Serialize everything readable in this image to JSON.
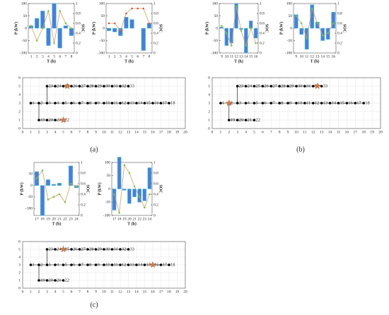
{
  "panels": [
    "(a)",
    "(b)",
    "(c)"
  ],
  "chart_data": [
    {
      "type": "bar",
      "xlabel": "T (h)",
      "ylabel": "P (kW)",
      "y2label": "SOC",
      "categories": [
        1,
        2,
        3,
        4,
        5,
        6,
        7,
        8
      ],
      "series": [
        {
          "values": [
            10,
            40,
            70,
            -70,
            100,
            -80,
            10,
            -30
          ],
          "color": "#4a7fd6"
        },
        {
          "kind": "line",
          "axis": "y2",
          "values": [
            0.55,
            0.25,
            0.5,
            0.85,
            0.2,
            0.85,
            0.6,
            0.5
          ],
          "color": "#c9a063",
          "marker_color": "#7cc242"
        }
      ],
      "ylim": [
        -100,
        100
      ],
      "yticks": [
        -100,
        -50,
        0,
        50,
        100
      ],
      "y2lim": [
        0,
        1
      ],
      "y2ticks": [
        0,
        0.2,
        0.4,
        0.6,
        0.8,
        1
      ]
    },
    {
      "type": "bar",
      "xlabel": "T (h)",
      "ylabel": "P (kW)",
      "y2label": "SOC",
      "categories": [
        1,
        2,
        3,
        4,
        5,
        6,
        7,
        8
      ],
      "series": [
        {
          "values": [
            -10,
            -15,
            -30,
            45,
            35,
            0,
            -90,
            20
          ],
          "color": "#4a7fd6"
        },
        {
          "kind": "line",
          "axis": "y2",
          "values": [
            0.6,
            0.6,
            0.45,
            0.8,
            0.9,
            0.9,
            0.9,
            0.6
          ],
          "color": "#c9a063",
          "marker_color": "#e0533a"
        }
      ],
      "ylim": [
        -100,
        100
      ],
      "yticks": [
        -100,
        -50,
        0,
        50,
        100
      ],
      "y2lim": [
        0,
        1
      ],
      "y2ticks": [
        0,
        0.2,
        0.4,
        0.6,
        0.8,
        1
      ]
    },
    {
      "type": "network",
      "xlim": [
        0,
        20
      ],
      "xticks": [
        0,
        1,
        2,
        3,
        4,
        5,
        6,
        7,
        8,
        9,
        10,
        11,
        12,
        13,
        14,
        15,
        16,
        17,
        18,
        19,
        20
      ],
      "ylim": [
        0,
        6
      ],
      "yticks": [
        0,
        1,
        2,
        3,
        4,
        5,
        6
      ],
      "grid": true,
      "series": [
        {
          "x": [
            1,
            2,
            3,
            4,
            5,
            6,
            7,
            8,
            9,
            10,
            11,
            12,
            13,
            14,
            15,
            16,
            17,
            18
          ],
          "values": [
            3,
            3,
            3,
            3,
            3,
            3,
            3,
            3,
            3,
            3,
            3,
            3,
            3,
            3,
            3,
            3,
            3,
            3
          ],
          "labels": [
            1,
            2,
            3,
            4,
            5,
            6,
            7,
            8,
            9,
            10,
            11,
            12,
            13,
            14,
            15,
            16,
            17,
            18
          ],
          "color": "#000000"
        },
        {
          "x": [
            2,
            3,
            4,
            5
          ],
          "values": [
            1,
            1,
            1,
            1
          ],
          "labels": [
            19,
            20,
            21,
            22
          ],
          "color": "#000000"
        },
        {
          "x": [
            3,
            4,
            5,
            6,
            7,
            8,
            9,
            10,
            11,
            12,
            13
          ],
          "values": [
            5,
            5,
            5,
            5,
            5,
            5,
            5,
            5,
            5,
            5,
            5
          ],
          "labels": [
            23,
            24,
            25,
            26,
            27,
            28,
            29,
            30,
            31,
            32,
            33
          ],
          "color": "#000000"
        },
        {
          "marker": "star",
          "x": [
            5,
            5.5
          ],
          "values": [
            1,
            5
          ],
          "color": "#e07a3a"
        }
      ]
    },
    {
      "type": "bar",
      "xlabel": "T (h)",
      "ylabel": "P (kW)",
      "y2label": "SOC",
      "categories": [
        9,
        10,
        11,
        12,
        13,
        14,
        15,
        16
      ],
      "series": [
        {
          "values": [
            5,
            -70,
            -60,
            100,
            -5,
            -100,
            30,
            -40
          ],
          "color": "#4a7fd6"
        },
        {
          "kind": "line",
          "axis": "y2",
          "values": [
            0.55,
            0.4,
            0.15,
            0.95,
            0.45,
            0.15,
            0.5,
            0.2
          ],
          "color": "#c9a063",
          "marker_color": "#7cc242"
        }
      ],
      "ylim": [
        -100,
        100
      ],
      "yticks": [
        -100,
        -50,
        0,
        50,
        100
      ],
      "y2lim": [
        0,
        1
      ],
      "y2ticks": [
        0,
        0.2,
        0.4,
        0.6,
        0.8,
        1
      ]
    },
    {
      "type": "bar",
      "xlabel": "T (h)",
      "ylabel": "P (kW)",
      "y2label": "SOC",
      "categories": [
        9,
        10,
        11,
        12,
        13,
        14,
        15,
        16
      ],
      "series": [
        {
          "values": [
            55,
            -25,
            -85,
            95,
            25,
            -50,
            -45,
            65
          ],
          "color": "#4a7fd6"
        },
        {
          "kind": "line",
          "axis": "y2",
          "values": [
            0.75,
            0.6,
            0.3,
            0.9,
            0.6,
            0.35,
            0.4,
            0.6
          ],
          "color": "#c9a063",
          "marker_color": "#7cc242"
        }
      ],
      "ylim": [
        -100,
        100
      ],
      "yticks": [
        -100,
        -50,
        0,
        50,
        100
      ],
      "y2lim": [
        0,
        1
      ],
      "y2ticks": [
        0,
        0.2,
        0.4,
        0.6,
        0.8,
        1
      ]
    },
    {
      "type": "network",
      "xlim": [
        0,
        20
      ],
      "xticks": [
        0,
        1,
        2,
        3,
        4,
        5,
        6,
        7,
        8,
        9,
        10,
        11,
        12,
        13,
        14,
        15,
        16,
        17,
        18,
        19,
        20
      ],
      "ylim": [
        0,
        6
      ],
      "yticks": [
        0,
        1,
        2,
        3,
        4,
        5,
        6
      ],
      "grid": true,
      "series": [
        {
          "x": [
            1,
            2,
            3,
            4,
            5,
            6,
            7,
            8,
            9,
            10,
            11,
            12,
            13,
            14,
            15,
            16,
            17,
            18
          ],
          "values": [
            3,
            3,
            3,
            3,
            3,
            3,
            3,
            3,
            3,
            3,
            3,
            3,
            3,
            3,
            3,
            3,
            3,
            3
          ],
          "labels": [
            1,
            2,
            3,
            4,
            5,
            6,
            7,
            8,
            9,
            10,
            11,
            12,
            13,
            14,
            15,
            16,
            17,
            18
          ],
          "color": "#000000"
        },
        {
          "x": [
            2,
            3,
            4,
            5
          ],
          "values": [
            1,
            1,
            1,
            1
          ],
          "labels": [
            19,
            20,
            21,
            22
          ],
          "color": "#000000"
        },
        {
          "x": [
            3,
            4,
            5,
            6,
            7,
            8,
            9,
            10,
            11,
            12,
            13
          ],
          "values": [
            5,
            5,
            5,
            5,
            5,
            5,
            5,
            5,
            5,
            5,
            5
          ],
          "labels": [
            23,
            24,
            25,
            26,
            27,
            28,
            29,
            30,
            31,
            32,
            33
          ],
          "color": "#000000"
        },
        {
          "marker": "star",
          "x": [
            2,
            12.5
          ],
          "values": [
            3,
            5
          ],
          "color": "#e07a3a"
        }
      ]
    },
    {
      "type": "bar",
      "xlabel": "T (h)",
      "ylabel": "P (kW)",
      "y2label": "SOC",
      "categories": [
        17,
        18,
        19,
        20,
        21,
        22,
        23,
        24
      ],
      "series": [
        {
          "values": [
            60,
            -130,
            25,
            5,
            10,
            0,
            85,
            -10
          ],
          "color": "#4a7fd6"
        },
        {
          "kind": "line",
          "axis": "y2",
          "values": [
            0.7,
            0.85,
            0.3,
            0.35,
            0.4,
            0.25,
            0.6,
            0.55
          ],
          "color": "#c9a063",
          "marker_color": "#7cc242"
        }
      ],
      "ylim": [
        -130,
        100
      ],
      "yticks": [
        -100,
        -50,
        0,
        50
      ],
      "y2lim": [
        0,
        1
      ],
      "y2ticks": [
        0,
        0.2,
        0.4,
        0.6,
        0.8,
        1
      ]
    },
    {
      "type": "bar",
      "xlabel": "T (h)",
      "ylabel": "P (kW)",
      "y2label": "SOC",
      "categories": [
        17,
        18,
        19,
        20,
        21,
        22,
        23,
        24
      ],
      "series": [
        {
          "values": [
            -80,
            120,
            -5,
            -55,
            -30,
            -50,
            -45,
            80
          ],
          "color": "#4a7fd6"
        },
        {
          "kind": "line",
          "axis": "y2",
          "values": [
            0.4,
            0.05,
            0.95,
            0.8,
            0.55,
            0.35,
            0.15,
            0.4
          ],
          "color": "#c9a063",
          "marker_color": "#7cc242"
        }
      ],
      "ylim": [
        -100,
        100
      ],
      "yticks": [
        -100,
        -50,
        0,
        50,
        100
      ],
      "y2lim": [
        0,
        1
      ],
      "y2ticks": [
        0,
        0.2,
        0.4,
        0.6,
        0.8,
        1
      ]
    },
    {
      "type": "network",
      "xlim": [
        0,
        20
      ],
      "xticks": [
        0,
        1,
        2,
        3,
        4,
        5,
        6,
        7,
        8,
        9,
        10,
        11,
        12,
        13,
        14,
        15,
        16,
        17,
        18,
        19,
        20
      ],
      "ylim": [
        0,
        6
      ],
      "yticks": [
        0,
        1,
        2,
        3,
        4,
        5,
        6
      ],
      "grid": true,
      "series": [
        {
          "x": [
            1,
            2,
            3,
            4,
            5,
            6,
            7,
            8,
            9,
            10,
            11,
            12,
            13,
            14,
            15,
            16,
            17,
            18
          ],
          "values": [
            3,
            3,
            3,
            3,
            3,
            3,
            3,
            3,
            3,
            3,
            3,
            3,
            3,
            3,
            3,
            3,
            3,
            3
          ],
          "labels": [
            1,
            2,
            3,
            4,
            5,
            6,
            7,
            8,
            9,
            10,
            11,
            12,
            13,
            14,
            15,
            16,
            17,
            18
          ],
          "color": "#000000"
        },
        {
          "x": [
            2,
            3,
            4,
            5
          ],
          "values": [
            1,
            1,
            1,
            1
          ],
          "labels": [
            19,
            20,
            21,
            22
          ],
          "color": "#000000"
        },
        {
          "x": [
            3,
            4,
            5,
            6,
            7,
            8,
            9,
            10,
            11,
            12,
            13
          ],
          "values": [
            5,
            5,
            5,
            5,
            5,
            5,
            5,
            5,
            5,
            5,
            5
          ],
          "labels": [
            23,
            24,
            25,
            26,
            27,
            28,
            29,
            30,
            31,
            32,
            33
          ],
          "color": "#000000"
        },
        {
          "marker": "star",
          "x": [
            5,
            16
          ],
          "values": [
            5,
            3
          ],
          "color": "#e07a3a"
        }
      ]
    }
  ]
}
